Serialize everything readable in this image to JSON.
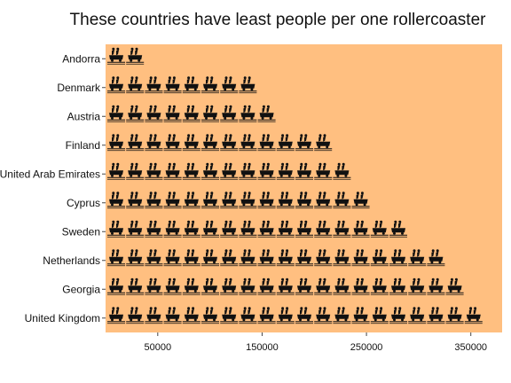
{
  "chart_data": {
    "type": "bar",
    "title": "These countries have least people per one rollercoaster",
    "xlabel": "",
    "ylabel": "",
    "categories": [
      "Andorra",
      "Denmark",
      "Austria",
      "Finland",
      "United Arab Emirates",
      "Cyprus",
      "Sweden",
      "Netherlands",
      "Georgia",
      "United Kingdom"
    ],
    "values": [
      35000,
      140000,
      155000,
      212000,
      237000,
      248000,
      295000,
      316000,
      340000,
      352000
    ],
    "x_ticks": [
      50000,
      150000,
      250000,
      350000
    ],
    "xlim": [
      0,
      380000
    ],
    "grid": false,
    "icon": "rollercoaster-car-icon",
    "colors": {
      "plot_background": "#ffbf80",
      "icon": "#111111"
    }
  }
}
